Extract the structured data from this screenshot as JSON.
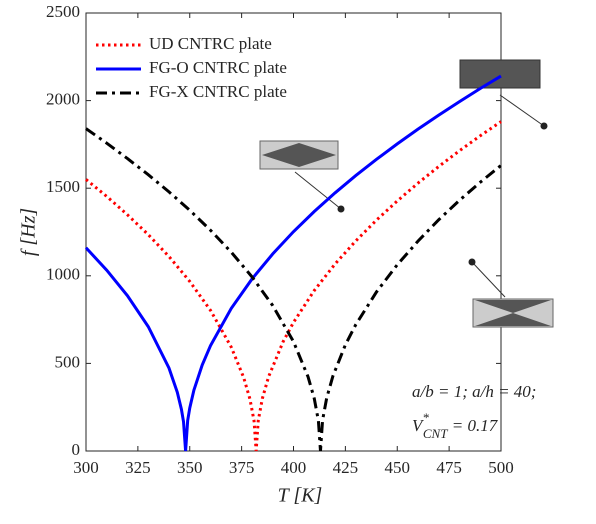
{
  "chart_data": {
    "type": "line",
    "xlabel": "T [K]",
    "ylabel": "f [Hz]",
    "xlim": [
      300,
      500
    ],
    "xticks": [
      300,
      325,
      350,
      375,
      400,
      425,
      450,
      475,
      500
    ],
    "ylim": [
      0,
      2500
    ],
    "yticks": [
      0,
      500,
      1000,
      1500,
      2000,
      2500
    ],
    "legend": "upper left",
    "annotation": "a/b = 1; a/h = 40;",
    "formula": {
      "base": "V",
      "sup": "*",
      "sub": "CNT",
      "rest": " = 0.17"
    },
    "series": [
      {
        "name": "UD CNTRC plate",
        "color": "#ff0000",
        "style": "dotted",
        "x": [
          300,
          310,
          320,
          330,
          340,
          350,
          360,
          370,
          376,
          379,
          381,
          382,
          383,
          385,
          388,
          395,
          400,
          410,
          420,
          430,
          440,
          450,
          460,
          470,
          480,
          490,
          500
        ],
        "values": [
          1550,
          1453,
          1348,
          1235,
          1110,
          968,
          803,
          593,
          419,
          297,
          171,
          0,
          173,
          300,
          424,
          624,
          734,
          916,
          1067,
          1199,
          1318,
          1427,
          1529,
          1624,
          1714,
          1799,
          1880
        ]
      },
      {
        "name": "FG-O CNTRC plate",
        "color": "#0000ff",
        "style": "solid",
        "x": [
          300,
          310,
          320,
          330,
          340,
          344,
          346,
          347,
          348,
          349,
          350,
          352,
          356,
          360,
          370,
          380,
          390,
          400,
          410,
          420,
          430,
          440,
          450,
          460,
          470,
          480,
          490,
          500
        ],
        "values": [
          1160,
          1032,
          886,
          710,
          473,
          335,
          237,
          167,
          0,
          174,
          245,
          347,
          491,
          601,
          814,
          982,
          1125,
          1252,
          1367,
          1473,
          1572,
          1665,
          1753,
          1837,
          1917,
          1994,
          2069,
          2140
        ]
      },
      {
        "name": "FG-X CNTRC plate",
        "color": "#000000",
        "style": "dashdot",
        "x": [
          300,
          310,
          320,
          330,
          340,
          350,
          360,
          370,
          380,
          390,
          400,
          407,
          410,
          412,
          413,
          414,
          416,
          419,
          425,
          430,
          440,
          450,
          460,
          470,
          480,
          490,
          500
        ],
        "values": [
          1840,
          1757,
          1669,
          1577,
          1479,
          1374,
          1260,
          1135,
          994,
          830,
          624,
          424,
          300,
          173,
          0,
          175,
          303,
          428,
          606,
          721,
          908,
          1063,
          1198,
          1320,
          1431,
          1534,
          1630
        ]
      }
    ]
  }
}
